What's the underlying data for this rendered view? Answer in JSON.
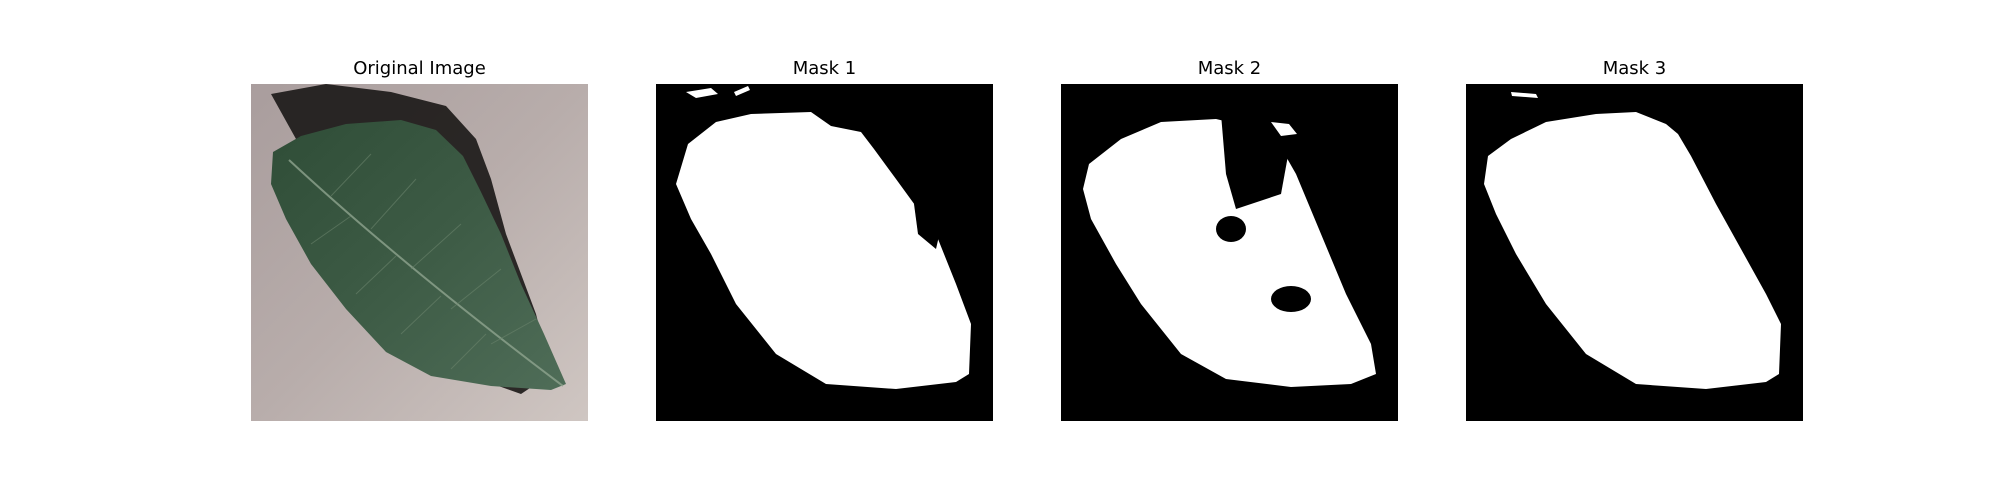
{
  "panels": [
    {
      "title": "Original Image",
      "icon": "leaf-photo"
    },
    {
      "title": "Mask 1",
      "icon": "leaf-mask"
    },
    {
      "title": "Mask 2",
      "icon": "leaf-mask"
    },
    {
      "title": "Mask 3",
      "icon": "leaf-mask"
    }
  ],
  "colors": {
    "background": "#ffffff",
    "mask_foreground": "#ffffff",
    "mask_background": "#000000",
    "photo_background": "#b6aaa9",
    "leaf": "#3f5a44"
  }
}
